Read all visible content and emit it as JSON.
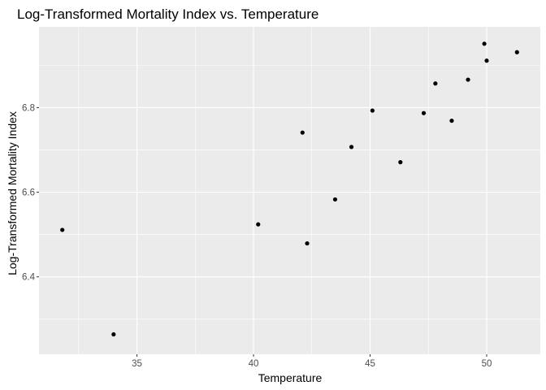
{
  "chart_data": {
    "type": "scatter",
    "title": "Log-Transformed Mortality Index vs. Temperature",
    "xlabel": "Temperature",
    "ylabel": "Log-Transformed Mortality Index",
    "xlim": [
      30.8,
      52.3
    ],
    "ylim": [
      6.217,
      6.991
    ],
    "x_ticks": [
      35,
      40,
      45,
      50
    ],
    "x_tick_labels": [
      "35",
      "40",
      "45",
      "50"
    ],
    "y_ticks": [
      6.4,
      6.6,
      6.8
    ],
    "y_tick_labels": [
      "6.4",
      "6.6",
      "6.8"
    ],
    "grid": true,
    "legend": "none",
    "colors": {
      "panel": "#ebebeb",
      "grid": "#ffffff",
      "points": "#000000",
      "tick_labels": "#4d4d4d"
    },
    "points": [
      {
        "x": 31.8,
        "y": 6.511
      },
      {
        "x": 34.0,
        "y": 6.264
      },
      {
        "x": 40.2,
        "y": 6.524
      },
      {
        "x": 42.1,
        "y": 6.741
      },
      {
        "x": 42.3,
        "y": 6.479
      },
      {
        "x": 43.5,
        "y": 6.583
      },
      {
        "x": 44.2,
        "y": 6.707
      },
      {
        "x": 45.1,
        "y": 6.793
      },
      {
        "x": 46.3,
        "y": 6.671
      },
      {
        "x": 47.3,
        "y": 6.787
      },
      {
        "x": 47.8,
        "y": 6.857
      },
      {
        "x": 48.5,
        "y": 6.769
      },
      {
        "x": 49.2,
        "y": 6.866
      },
      {
        "x": 49.9,
        "y": 6.951
      },
      {
        "x": 50.0,
        "y": 6.911
      },
      {
        "x": 51.3,
        "y": 6.931
      }
    ]
  }
}
